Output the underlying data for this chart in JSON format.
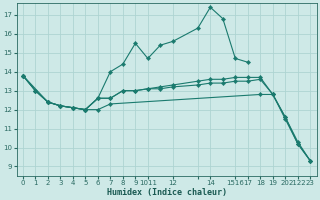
{
  "xlabel": "Humidex (Indice chaleur)",
  "bg_color": "#cee9e7",
  "grid_color": "#aed4d2",
  "line_color": "#1a7a6e",
  "xlim": [
    -0.5,
    23.5
  ],
  "ylim": [
    8.5,
    17.6
  ],
  "yticks": [
    9,
    10,
    11,
    12,
    13,
    14,
    15,
    16,
    17
  ],
  "xtick_labels": [
    "0",
    "1",
    "2",
    "3",
    "4",
    "5",
    "6",
    "7",
    "8",
    "9",
    "1011",
    "12",
    "",
    "14",
    "1516",
    "17",
    "18",
    "19",
    "20",
    "2122",
    "23"
  ],
  "lines": [
    {
      "x": [
        0,
        1,
        2,
        3,
        4,
        5,
        6,
        7,
        8,
        9,
        10,
        11,
        12,
        14,
        15,
        16,
        17,
        18
      ],
      "y": [
        13.8,
        13.0,
        12.4,
        12.2,
        12.1,
        12.0,
        12.6,
        14.0,
        14.4,
        15.5,
        14.7,
        15.4,
        15.6,
        16.3,
        17.4,
        16.8,
        14.7,
        14.5
      ]
    },
    {
      "x": [
        0,
        1,
        2,
        3,
        4,
        5,
        6,
        7,
        8,
        9,
        10,
        11,
        12,
        14,
        15,
        16,
        17,
        18,
        19,
        20,
        21,
        22,
        23
      ],
      "y": [
        13.8,
        13.0,
        12.4,
        12.2,
        12.1,
        12.0,
        12.6,
        12.6,
        13.0,
        13.0,
        13.1,
        13.2,
        13.3,
        13.5,
        13.6,
        13.6,
        13.7,
        13.7,
        13.7,
        12.8,
        11.6,
        10.3,
        9.3
      ]
    },
    {
      "x": [
        0,
        1,
        2,
        3,
        4,
        5,
        6,
        7,
        8,
        9,
        10,
        11,
        12,
        14,
        15,
        16,
        17,
        18,
        19,
        20,
        21,
        22,
        23
      ],
      "y": [
        13.8,
        13.0,
        12.4,
        12.2,
        12.1,
        12.0,
        12.6,
        12.6,
        13.0,
        13.0,
        13.1,
        13.1,
        13.2,
        13.3,
        13.4,
        13.4,
        13.5,
        13.5,
        13.6,
        12.8,
        11.6,
        10.2,
        9.3
      ]
    },
    {
      "x": [
        0,
        2,
        3,
        4,
        5,
        6,
        7,
        19,
        20,
        21,
        22,
        23
      ],
      "y": [
        13.8,
        12.4,
        12.2,
        12.1,
        12.0,
        12.0,
        12.3,
        12.8,
        12.8,
        11.5,
        10.2,
        9.3
      ]
    }
  ]
}
